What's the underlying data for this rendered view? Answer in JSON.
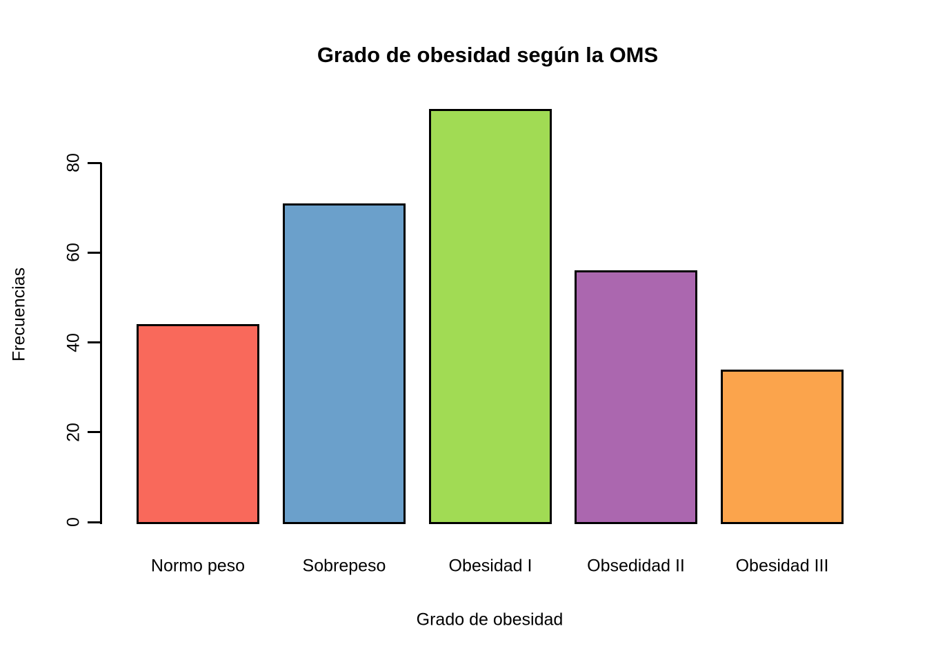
{
  "chart_data": {
    "type": "bar",
    "title": "Grado de obesidad según la OMS",
    "xlabel": "Grado de obesidad",
    "ylabel": "Frecuencias",
    "categories": [
      "Normo peso",
      "Sobrepeso",
      "Obesidad I",
      "Obsedidad II",
      "Obesidad III"
    ],
    "values": [
      44,
      71,
      92,
      56,
      34
    ],
    "bar_colors": [
      "#F9695B",
      "#6BA0CB",
      "#A1DB54",
      "#AB67AF",
      "#FBA44C"
    ],
    "bar_border_color": "#000000",
    "yticks": [
      0,
      20,
      40,
      60,
      80
    ],
    "ylim": [
      0,
      92
    ],
    "grid": false,
    "legend_position": "none",
    "background_color": "#FFFFFF"
  }
}
